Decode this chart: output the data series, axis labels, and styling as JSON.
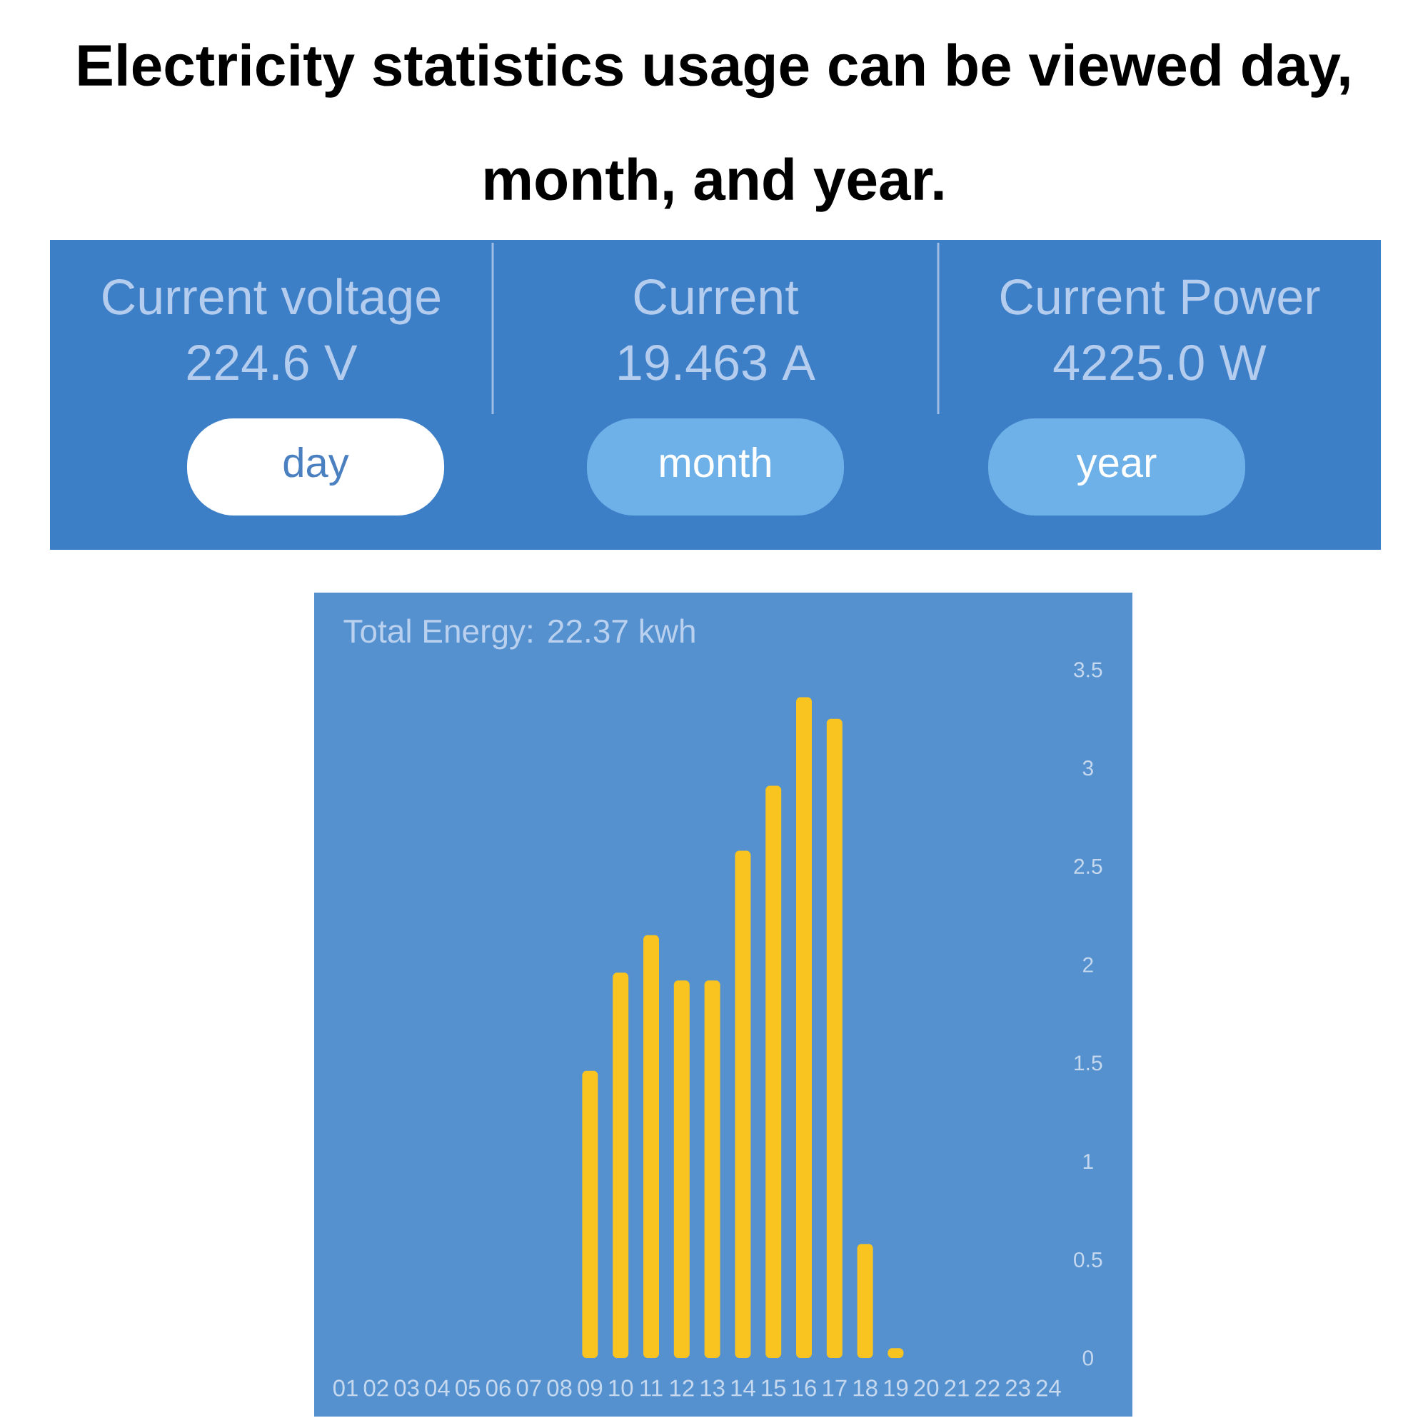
{
  "chart_data": [
    {
      "type": "other",
      "title": "Electricity statistics usage can be viewed day, month, and year.",
      "annotations": [
        "Current voltage",
        "224.6 V",
        "Current",
        "19.463 A",
        "Current Power",
        "4225.0 W",
        "day",
        "month",
        "year"
      ]
    },
    {
      "type": "bar",
      "title": "Total Energy: 22.37 kwh",
      "categories": [
        "01",
        "02",
        "03",
        "04",
        "05",
        "06",
        "07",
        "08",
        "09",
        "10",
        "11",
        "12",
        "13",
        "14",
        "15",
        "16",
        "17",
        "18",
        "19",
        "20",
        "21",
        "22",
        "23",
        "24"
      ],
      "values": [
        0,
        0,
        0,
        0,
        0,
        0,
        0,
        0,
        1.46,
        1.96,
        2.15,
        1.92,
        1.92,
        2.58,
        2.91,
        3.36,
        3.25,
        0.58,
        0.05,
        0,
        0,
        0,
        0,
        0
      ],
      "color": "#f9c320",
      "ylim": [
        0,
        3.5
      ],
      "yticks": [
        0,
        0.5,
        1,
        1.5,
        2,
        2.5,
        3,
        3.5
      ]
    }
  ]
}
